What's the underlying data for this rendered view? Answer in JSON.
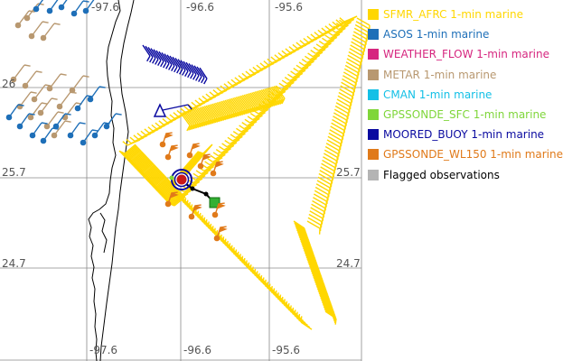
{
  "map": {
    "lon_ticks_top": [
      "-97.6",
      "-96.6",
      "-95.6"
    ],
    "lon_ticks_bottom": [
      "-97.6",
      "-96.6",
      "-95.6"
    ],
    "lat_ticks_left": [
      "26",
      "25.7",
      "24.7"
    ],
    "lat_ticks_right": [
      "25.7",
      "24.7"
    ]
  },
  "legend": {
    "items": [
      {
        "label": "SFMR_AFRC 1-min marine",
        "color": "#ffd700"
      },
      {
        "label": "ASOS 1-min marine",
        "color": "#1e6fb8"
      },
      {
        "label": "WEATHER_FLOW 1-min marine",
        "color": "#d6267f"
      },
      {
        "label": "METAR 1-min marine",
        "color": "#b89870"
      },
      {
        "label": "CMAN 1-min marine",
        "color": "#14c0e6"
      },
      {
        "label": "GPSSONDE_SFC 1-min marine",
        "color": "#7fd63a"
      },
      {
        "label": "MOORED_BUOY 1-min marine",
        "color": "#0a0aa0"
      },
      {
        "label": "GPSSONDE_WL150 1-min marine",
        "color": "#e07a1a"
      },
      {
        "label": "Flagged observations",
        "color": "#b4b4b4",
        "text_color": "#000000"
      }
    ]
  }
}
